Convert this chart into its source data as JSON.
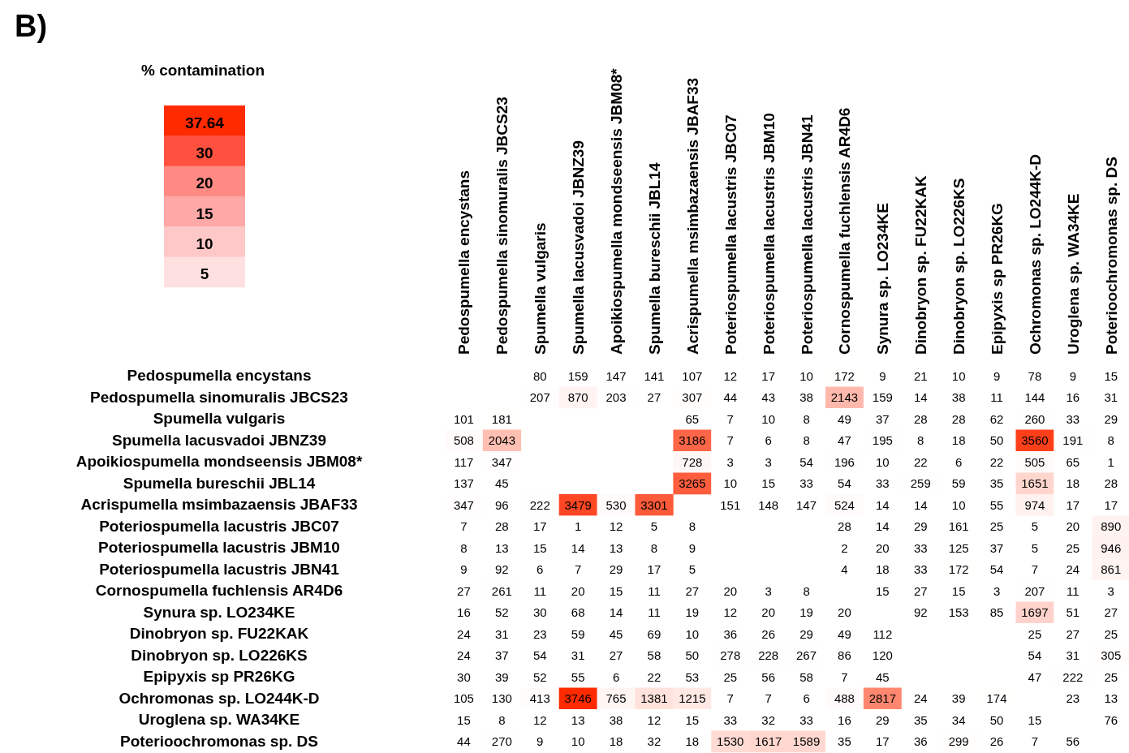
{
  "chart_data": [
    {
      "type": "heatmap",
      "title": "B)",
      "data_labels": true,
      "categories": [
        "Pedospumella encystans",
        "Pedospumella sinomuralis JBCS23",
        "Spumella vulgaris",
        "Spumella lacusvadoi JBNZ39",
        "Apoikiospumella mondseensis JBM08*",
        "Spumella bureschii JBL14",
        "Acrispumella msimbazaensis JBAF33",
        "Poteriospumella lacustris JBC07",
        "Poteriospumella lacustris JBM10",
        "Poteriospumella lacustris JBN41",
        "Cornospumella fuchlensis AR4D6",
        "Synura sp. LO234KE",
        "Dinobryon sp. FU22KAK",
        "Dinobryon sp. LO226KS",
        "Epipyxis sp PR26KG",
        "Ochromonas sp. LO244K-D",
        "Uroglena sp. WA34KE",
        "Poterioochromonas sp. DS"
      ],
      "y_categories": [
        "Pedospumella encystans",
        "Pedospumella sinomuralis JBCS23",
        "Spumella vulgaris",
        "Spumella lacusvadoi JBNZ39",
        "Apoikiospumella mondseensis JBM08*",
        "Spumella bureschii JBL14",
        "Acrispumella msimbazaensis JBAF33",
        "Poteriospumella lacustris JBC07",
        "Poteriospumella lacustris JBM10",
        "Poteriospumella lacustris JBN41",
        "Cornospumella fuchlensis AR4D6",
        "Synura sp. LO234KE",
        "Dinobryon sp. FU22KAK",
        "Dinobryon sp. LO226KS",
        "Epipyxis sp PR26KG",
        "Ochromonas sp. LO244K-D",
        "Uroglena sp. WA34KE",
        "Poterioochromonas sp. DS"
      ],
      "cells": [
        [
          null,
          null,
          80,
          159,
          147,
          141,
          107,
          12,
          17,
          10,
          172,
          9,
          21,
          10,
          9,
          78,
          9,
          15
        ],
        [
          null,
          null,
          207,
          870,
          203,
          27,
          307,
          44,
          43,
          38,
          2143,
          159,
          14,
          38,
          11,
          144,
          16,
          31
        ],
        [
          101,
          181,
          null,
          null,
          null,
          null,
          65,
          7,
          10,
          8,
          49,
          37,
          28,
          28,
          62,
          260,
          33,
          29
        ],
        [
          508,
          2043,
          null,
          null,
          null,
          null,
          3186,
          7,
          6,
          8,
          47,
          195,
          8,
          18,
          50,
          3560,
          191,
          8
        ],
        [
          117,
          347,
          null,
          null,
          null,
          null,
          728,
          3,
          3,
          54,
          196,
          10,
          22,
          6,
          22,
          505,
          65,
          1
        ],
        [
          137,
          45,
          null,
          null,
          null,
          null,
          3265,
          10,
          15,
          33,
          54,
          33,
          259,
          59,
          35,
          1651,
          18,
          28
        ],
        [
          347,
          96,
          222,
          3479,
          530,
          3301,
          null,
          151,
          148,
          147,
          524,
          14,
          14,
          10,
          55,
          974,
          17,
          17
        ],
        [
          7,
          28,
          17,
          1,
          12,
          5,
          8,
          null,
          null,
          null,
          28,
          14,
          29,
          161,
          25,
          5,
          20,
          890
        ],
        [
          8,
          13,
          15,
          14,
          13,
          8,
          9,
          null,
          null,
          null,
          2,
          20,
          33,
          125,
          37,
          5,
          25,
          946
        ],
        [
          9,
          92,
          6,
          7,
          29,
          17,
          5,
          null,
          null,
          null,
          4,
          18,
          33,
          172,
          54,
          7,
          24,
          861
        ],
        [
          27,
          261,
          11,
          20,
          15,
          11,
          27,
          20,
          3,
          8,
          null,
          15,
          27,
          15,
          3,
          207,
          11,
          3
        ],
        [
          16,
          52,
          30,
          68,
          14,
          11,
          19,
          12,
          20,
          19,
          20,
          null,
          92,
          153,
          85,
          1697,
          51,
          27
        ],
        [
          24,
          31,
          23,
          59,
          45,
          69,
          10,
          36,
          26,
          29,
          49,
          112,
          null,
          null,
          null,
          25,
          27,
          25
        ],
        [
          24,
          37,
          54,
          31,
          27,
          58,
          50,
          278,
          228,
          267,
          86,
          120,
          null,
          null,
          null,
          54,
          31,
          305
        ],
        [
          30,
          39,
          52,
          55,
          6,
          22,
          53,
          25,
          56,
          58,
          7,
          45,
          null,
          null,
          null,
          47,
          222,
          25
        ],
        [
          105,
          130,
          413,
          3746,
          765,
          1381,
          1215,
          7,
          7,
          6,
          488,
          2817,
          24,
          39,
          174,
          null,
          23,
          13
        ],
        [
          15,
          8,
          12,
          13,
          38,
          12,
          15,
          33,
          32,
          33,
          16,
          29,
          35,
          34,
          50,
          15,
          null,
          76
        ],
        [
          44,
          270,
          9,
          10,
          18,
          32,
          18,
          1530,
          1617,
          1589,
          35,
          17,
          36,
          299,
          26,
          7,
          56,
          null
        ]
      ]
    },
    {
      "type": "other",
      "title": "% contamination",
      "annotations": [
        "37.64",
        "30",
        "20",
        "15",
        "10",
        "5"
      ]
    }
  ]
}
